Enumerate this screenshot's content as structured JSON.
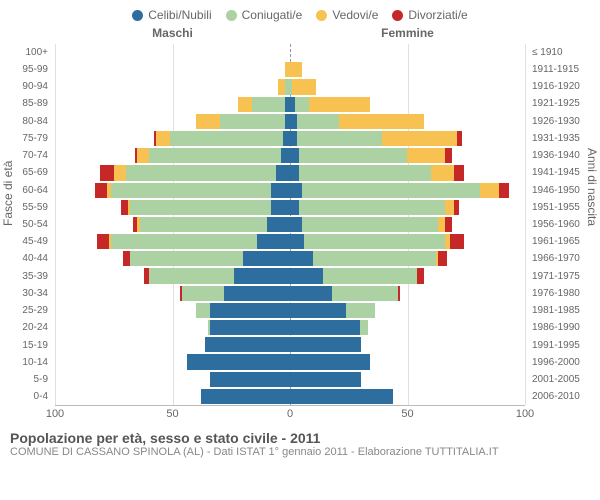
{
  "legend": [
    {
      "label": "Celibi/Nubili",
      "color": "#2e6e9e"
    },
    {
      "label": "Coniugati/e",
      "color": "#acd1a2"
    },
    {
      "label": "Vedovi/e",
      "color": "#f7c251"
    },
    {
      "label": "Divorziati/e",
      "color": "#c62828"
    }
  ],
  "headers": {
    "male": "Maschi",
    "female": "Femmine"
  },
  "ylabels": {
    "left": "Fasce di età",
    "right": "Anni di nascita"
  },
  "xaxis": {
    "max": 100,
    "ticks": [
      100,
      50,
      0,
      50,
      100
    ]
  },
  "title": "Popolazione per età, sesso e stato civile - 2011",
  "subtitle": "COMUNE DI CASSANO SPINOLA (AL) - Dati ISTAT 1° gennaio 2011 - Elaborazione TUTTITALIA.IT",
  "data": [
    {
      "age": "100+",
      "birth": "≤ 1910",
      "m": {
        "celibi": 0,
        "coniugati": 0,
        "vedovi": 0,
        "divorziati": 0
      },
      "f": {
        "celibi": 0,
        "coniugati": 0,
        "vedovi": 0,
        "divorziati": 0
      }
    },
    {
      "age": "95-99",
      "birth": "1911-1915",
      "m": {
        "celibi": 0,
        "coniugati": 0,
        "vedovi": 2,
        "divorziati": 0
      },
      "f": {
        "celibi": 0,
        "coniugati": 0,
        "vedovi": 5,
        "divorziati": 0
      }
    },
    {
      "age": "90-94",
      "birth": "1916-1920",
      "m": {
        "celibi": 0,
        "coniugati": 2,
        "vedovi": 3,
        "divorziati": 0
      },
      "f": {
        "celibi": 0,
        "coniugati": 1,
        "vedovi": 10,
        "divorziati": 0
      }
    },
    {
      "age": "85-89",
      "birth": "1921-1925",
      "m": {
        "celibi": 2,
        "coniugati": 14,
        "vedovi": 6,
        "divorziati": 0
      },
      "f": {
        "celibi": 2,
        "coniugati": 6,
        "vedovi": 26,
        "divorziati": 0
      }
    },
    {
      "age": "80-84",
      "birth": "1926-1930",
      "m": {
        "celibi": 2,
        "coniugati": 28,
        "vedovi": 10,
        "divorziati": 0
      },
      "f": {
        "celibi": 3,
        "coniugati": 18,
        "vedovi": 36,
        "divorziati": 0
      }
    },
    {
      "age": "75-79",
      "birth": "1931-1935",
      "m": {
        "celibi": 3,
        "coniugati": 48,
        "vedovi": 6,
        "divorziati": 1
      },
      "f": {
        "celibi": 3,
        "coniugati": 36,
        "vedovi": 32,
        "divorziati": 2
      }
    },
    {
      "age": "70-74",
      "birth": "1936-1940",
      "m": {
        "celibi": 4,
        "coniugati": 56,
        "vedovi": 5,
        "divorziati": 1
      },
      "f": {
        "celibi": 4,
        "coniugati": 46,
        "vedovi": 16,
        "divorziati": 3
      }
    },
    {
      "age": "65-69",
      "birth": "1941-1945",
      "m": {
        "celibi": 6,
        "coniugati": 64,
        "vedovi": 5,
        "divorziati": 6
      },
      "f": {
        "celibi": 4,
        "coniugati": 56,
        "vedovi": 10,
        "divorziati": 4
      }
    },
    {
      "age": "60-64",
      "birth": "1946-1950",
      "m": {
        "celibi": 8,
        "coniugati": 68,
        "vedovi": 2,
        "divorziati": 5
      },
      "f": {
        "celibi": 5,
        "coniugati": 76,
        "vedovi": 8,
        "divorziati": 4
      }
    },
    {
      "age": "55-59",
      "birth": "1951-1955",
      "m": {
        "celibi": 8,
        "coniugati": 60,
        "vedovi": 1,
        "divorziati": 3
      },
      "f": {
        "celibi": 4,
        "coniugati": 62,
        "vedovi": 4,
        "divorziati": 2
      }
    },
    {
      "age": "50-54",
      "birth": "1956-1960",
      "m": {
        "celibi": 10,
        "coniugati": 54,
        "vedovi": 1,
        "divorziati": 2
      },
      "f": {
        "celibi": 5,
        "coniugati": 58,
        "vedovi": 3,
        "divorziati": 3
      }
    },
    {
      "age": "45-49",
      "birth": "1961-1965",
      "m": {
        "celibi": 14,
        "coniugati": 62,
        "vedovi": 1,
        "divorziati": 5
      },
      "f": {
        "celibi": 6,
        "coniugati": 60,
        "vedovi": 2,
        "divorziati": 6
      }
    },
    {
      "age": "40-44",
      "birth": "1966-1970",
      "m": {
        "celibi": 20,
        "coniugati": 48,
        "vedovi": 0,
        "divorziati": 3
      },
      "f": {
        "celibi": 10,
        "coniugati": 52,
        "vedovi": 1,
        "divorziati": 4
      }
    },
    {
      "age": "35-39",
      "birth": "1971-1975",
      "m": {
        "celibi": 24,
        "coniugati": 36,
        "vedovi": 0,
        "divorziati": 2
      },
      "f": {
        "celibi": 14,
        "coniugati": 40,
        "vedovi": 0,
        "divorziati": 3
      }
    },
    {
      "age": "30-34",
      "birth": "1976-1980",
      "m": {
        "celibi": 28,
        "coniugati": 18,
        "vedovi": 0,
        "divorziati": 1
      },
      "f": {
        "celibi": 18,
        "coniugati": 28,
        "vedovi": 0,
        "divorziati": 1
      }
    },
    {
      "age": "25-29",
      "birth": "1981-1985",
      "m": {
        "celibi": 34,
        "coniugati": 6,
        "vedovi": 0,
        "divorziati": 0
      },
      "f": {
        "celibi": 24,
        "coniugati": 12,
        "vedovi": 0,
        "divorziati": 0
      }
    },
    {
      "age": "20-24",
      "birth": "1986-1990",
      "m": {
        "celibi": 34,
        "coniugati": 1,
        "vedovi": 0,
        "divorziati": 0
      },
      "f": {
        "celibi": 30,
        "coniugati": 3,
        "vedovi": 0,
        "divorziati": 0
      }
    },
    {
      "age": "15-19",
      "birth": "1991-1995",
      "m": {
        "celibi": 36,
        "coniugati": 0,
        "vedovi": 0,
        "divorziati": 0
      },
      "f": {
        "celibi": 30,
        "coniugati": 0,
        "vedovi": 0,
        "divorziati": 0
      }
    },
    {
      "age": "10-14",
      "birth": "1996-2000",
      "m": {
        "celibi": 44,
        "coniugati": 0,
        "vedovi": 0,
        "divorziati": 0
      },
      "f": {
        "celibi": 34,
        "coniugati": 0,
        "vedovi": 0,
        "divorziati": 0
      }
    },
    {
      "age": "5-9",
      "birth": "2001-2005",
      "m": {
        "celibi": 34,
        "coniugati": 0,
        "vedovi": 0,
        "divorziati": 0
      },
      "f": {
        "celibi": 30,
        "coniugati": 0,
        "vedovi": 0,
        "divorziati": 0
      }
    },
    {
      "age": "0-4",
      "birth": "2006-2010",
      "m": {
        "celibi": 38,
        "coniugati": 0,
        "vedovi": 0,
        "divorziati": 0
      },
      "f": {
        "celibi": 44,
        "coniugati": 0,
        "vedovi": 0,
        "divorziati": 0
      }
    }
  ]
}
